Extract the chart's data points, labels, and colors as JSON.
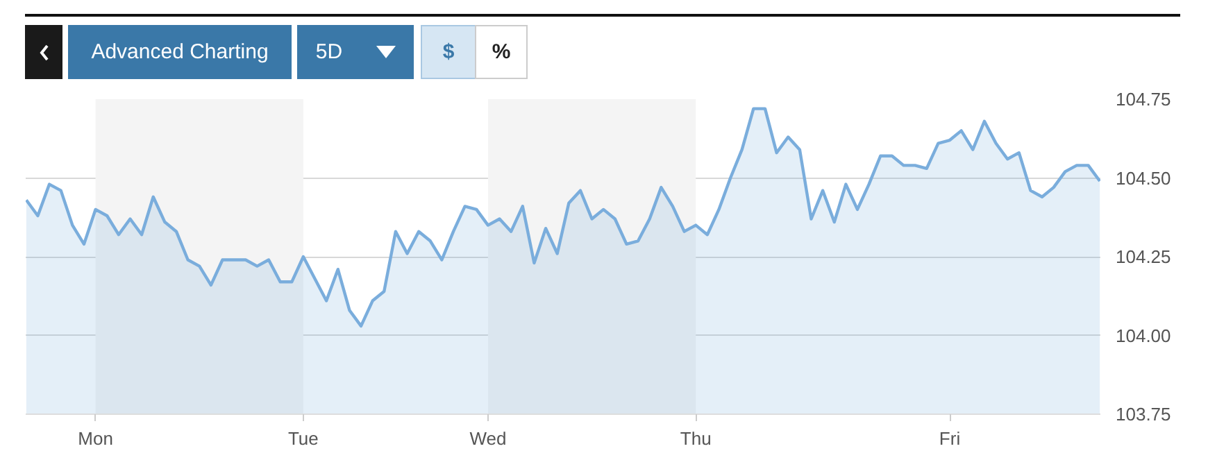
{
  "chart_data": {
    "type": "area",
    "annotations": [
      "Advanced Charting",
      "5D",
      "$",
      "%"
    ],
    "categories": [
      null,
      null,
      null,
      null,
      null,
      null,
      "Mon",
      null,
      null,
      null,
      null,
      null,
      null,
      null,
      null,
      null,
      null,
      null,
      null,
      null,
      null,
      null,
      null,
      null,
      "Tue",
      null,
      null,
      null,
      null,
      null,
      null,
      null,
      null,
      null,
      null,
      null,
      null,
      null,
      null,
      null,
      "Wed",
      null,
      null,
      null,
      null,
      null,
      null,
      null,
      null,
      null,
      null,
      null,
      null,
      null,
      null,
      null,
      null,
      null,
      "Thu",
      null,
      null,
      null,
      null,
      null,
      null,
      null,
      null,
      null,
      null,
      null,
      null,
      null,
      null,
      null,
      null,
      null,
      null,
      null,
      null,
      null,
      "Fri",
      null,
      null,
      null,
      null,
      null,
      null,
      null,
      null,
      null,
      null,
      null,
      null,
      null
    ],
    "series": [
      {
        "color": "#7aaddc",
        "values": [
          104.43,
          104.38,
          104.48,
          104.46,
          104.35,
          104.29,
          104.4,
          104.38,
          104.32,
          104.37,
          104.32,
          104.44,
          104.36,
          104.33,
          104.24,
          104.22,
          104.16,
          104.24,
          104.24,
          104.24,
          104.22,
          104.24,
          104.17,
          104.17,
          104.25,
          104.18,
          104.11,
          104.21,
          104.08,
          104.03,
          104.11,
          104.14,
          104.33,
          104.26,
          104.33,
          104.3,
          104.24,
          104.33,
          104.41,
          104.4,
          104.35,
          104.37,
          104.33,
          104.41,
          104.23,
          104.34,
          104.26,
          104.42,
          104.46,
          104.37,
          104.4,
          104.37,
          104.29,
          104.3,
          104.37,
          104.47,
          104.41,
          104.33,
          104.35,
          104.32,
          104.4,
          104.5,
          104.59,
          104.72,
          104.72,
          104.58,
          104.63,
          104.59,
          104.37,
          104.46,
          104.36,
          104.48,
          104.4,
          104.48,
          104.57,
          104.57,
          104.54,
          104.54,
          104.53,
          104.61,
          104.62,
          104.65,
          104.59,
          104.68,
          104.61,
          104.56,
          104.58,
          104.46,
          104.44,
          104.47,
          104.52,
          104.54,
          104.54,
          104.49
        ]
      }
    ],
    "ylim": [
      103.75,
      104.75
    ],
    "yticks": [
      {
        "value": 103.75,
        "label": "103.75"
      },
      {
        "value": 104.0,
        "label": "104.00"
      },
      {
        "value": 104.25,
        "label": "104.25"
      },
      {
        "value": 104.5,
        "label": "104.50"
      },
      {
        "value": 104.75,
        "label": "104.75"
      }
    ],
    "bands": [
      {
        "axis": "x",
        "from": "Mon",
        "to": "Tue",
        "color": "#f4f4f4"
      },
      {
        "axis": "x",
        "from": "Wed",
        "to": "Thu",
        "color": "#f4f4f4"
      }
    ],
    "grid": "y"
  }
}
